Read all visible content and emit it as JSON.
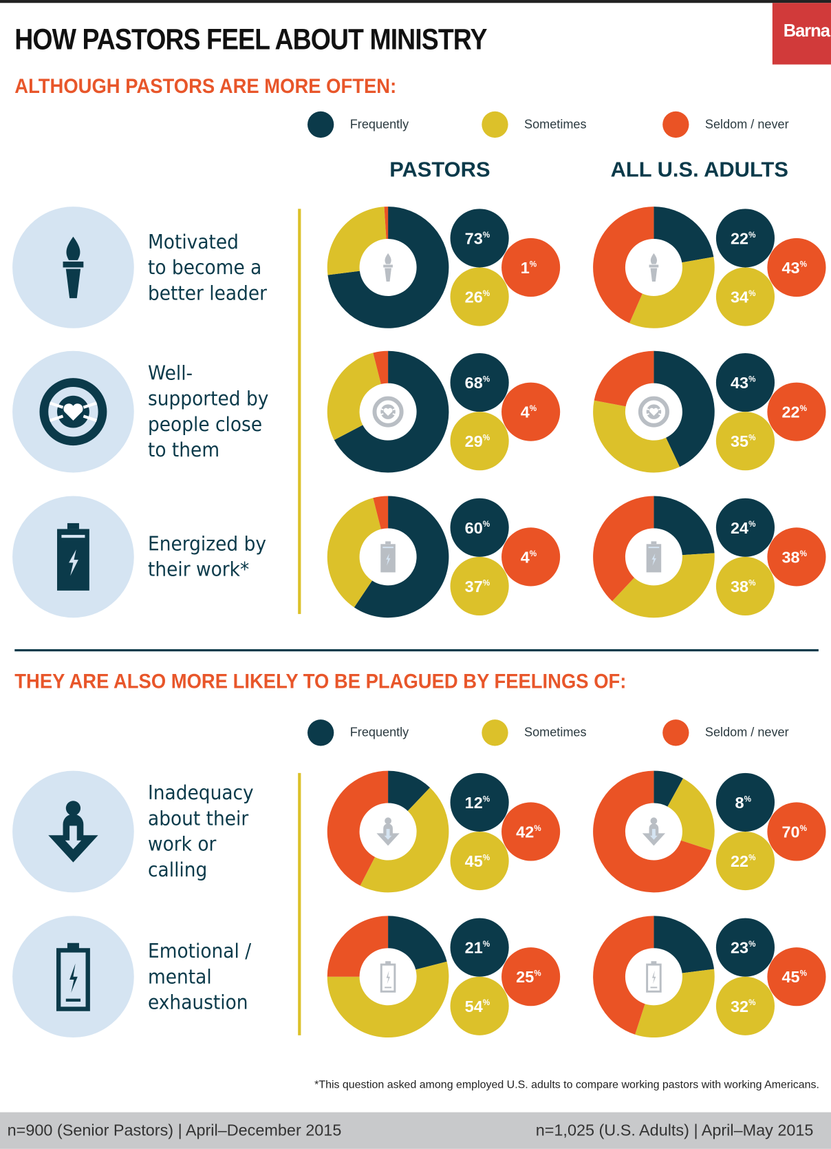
{
  "header": {
    "title": "HOW PASTORS FEEL ABOUT MINISTRY",
    "logo": "Barna"
  },
  "section1": {
    "heading": "ALTHOUGH PASTORS ARE MORE OFTEN:"
  },
  "section2": {
    "heading": "THEY ARE ALSO MORE LIKELY TO BE PLAGUED BY FEELINGS OF:"
  },
  "legend": {
    "frequently": "Frequently",
    "sometimes": "Sometimes",
    "seldom": "Seldom / never"
  },
  "columns": {
    "pastors": "PASTORS",
    "adults": "ALL U.S. ADULTS"
  },
  "colors": {
    "frequently": "#0b3a4a",
    "sometimes": "#dcc12a",
    "seldom": "#ea5325"
  },
  "chart_data": {
    "type": "pie",
    "series_names": [
      "Frequently",
      "Sometimes",
      "Seldom / never"
    ],
    "rows": [
      {
        "label": "Motivated to become a better leader",
        "icon": "torch-icon",
        "pastors": [
          73,
          26,
          1
        ],
        "adults": [
          22,
          34,
          43
        ]
      },
      {
        "label": "Well-supported by people close to them",
        "icon": "lifebuoy-heart-icon",
        "pastors": [
          68,
          29,
          4
        ],
        "adults": [
          43,
          35,
          22
        ]
      },
      {
        "label": "Energized by their work*",
        "icon": "battery-full-icon",
        "pastors": [
          60,
          37,
          4
        ],
        "adults": [
          24,
          38,
          38
        ]
      },
      {
        "label": "Inadequacy about their work or calling",
        "icon": "person-down-arrow-icon",
        "pastors": [
          12,
          45,
          42
        ],
        "adults": [
          8,
          22,
          70
        ]
      },
      {
        "label": "Emotional / mental exhaustion",
        "icon": "battery-low-icon",
        "pastors": [
          21,
          54,
          25
        ],
        "adults": [
          23,
          32,
          45
        ]
      }
    ]
  },
  "footnote": "*This question asked among employed U.S. adults to compare working pastors with working Americans.",
  "footer": {
    "left": "n=900 (Senior Pastors) | April–December 2015",
    "right": "n=1,025 (U.S. Adults) | April–May 2015"
  }
}
